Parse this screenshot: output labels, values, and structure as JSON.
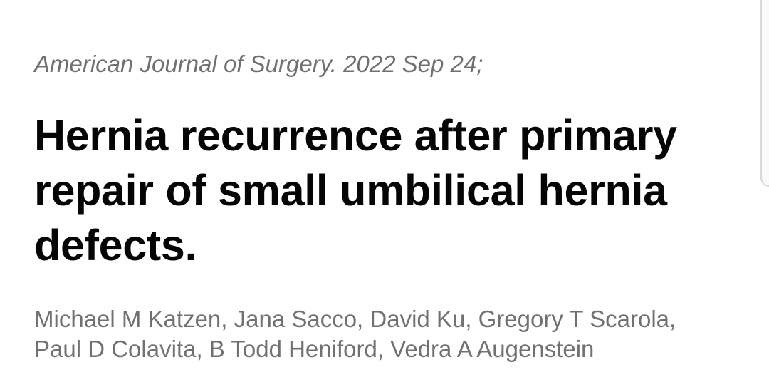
{
  "article": {
    "citation": "American Journal of Surgery. 2022 Sep 24;",
    "title": "Hernia recurrence after primary repair of small umbilical hernia defects.",
    "authors_line1": "Michael M Katzen, Jana Sacco, David Ku, Gregory T Scarola,",
    "authors_line2": "Paul D Colavita, B Todd Heniford, Vedra A Augenstein"
  },
  "colors": {
    "title": "#050505",
    "meta_text": "#707070",
    "background": "#ffffff"
  }
}
